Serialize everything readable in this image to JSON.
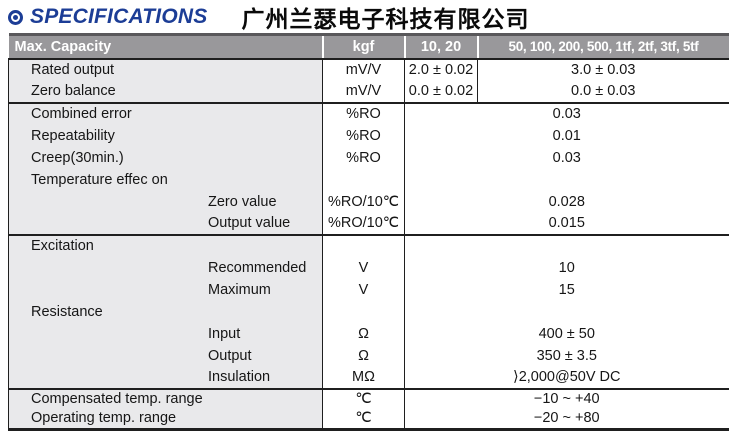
{
  "title_bar": {
    "bullet_icon": "fisheye-bullet",
    "title": "SPECIFICATIONS",
    "company": "广州兰瑟电子科技有限公司"
  },
  "colors": {
    "title_blue": "#1c3d96",
    "table_header_bg": "#99989b",
    "label_column_bg": "#e9e9eb",
    "rule_line": "#1f1f1f"
  },
  "table": {
    "header": {
      "capacity_label": "Max. Capacity",
      "unit": "kgf",
      "range_low": "10, 20",
      "range_high": "50, 100, 200, 500, 1tf, 2tf, 3tf, 5tf"
    },
    "rows": [
      {
        "label": "Rated output",
        "sub": false,
        "unit": "mV/V",
        "value_low": "2.0 ± 0.02",
        "value_high": "3.0 ± 0.03",
        "split": true
      },
      {
        "label": "Zero balance",
        "sub": false,
        "unit": "mV/V",
        "value_low": "0.0 ± 0.02",
        "value_high": "0.0 ± 0.03",
        "split": true
      },
      {
        "label": "Combined error",
        "sub": false,
        "unit": "%RO",
        "value": "0.03",
        "section_start": true
      },
      {
        "label": "Repeatability",
        "sub": false,
        "unit": "%RO",
        "value": "0.01"
      },
      {
        "label": "Creep(30min.)",
        "sub": false,
        "unit": "%RO",
        "value": "0.03"
      },
      {
        "label": "Temperature effec on",
        "sub": false,
        "unit": "",
        "value": ""
      },
      {
        "label": "Zero value",
        "sub": true,
        "unit": "%RO/10℃",
        "value": "0.028"
      },
      {
        "label": "Output value",
        "sub": true,
        "unit": "%RO/10℃",
        "value": "0.015"
      },
      {
        "label": "Excitation",
        "sub": false,
        "unit": "",
        "value": "",
        "section_start": true
      },
      {
        "label": "Recommended",
        "sub": true,
        "unit": "V",
        "value": "10"
      },
      {
        "label": "Maximum",
        "sub": true,
        "unit": "V",
        "value": "15"
      },
      {
        "label": "Resistance",
        "sub": false,
        "unit": "",
        "value": ""
      },
      {
        "label": "Input",
        "sub": true,
        "unit": "Ω",
        "value": "400 ± 50"
      },
      {
        "label": "Output",
        "sub": true,
        "unit": "Ω",
        "value": "350 ± 3.5"
      },
      {
        "label": "Insulation",
        "sub": true,
        "unit": "MΩ",
        "value": "⟩2,000@50V DC"
      },
      {
        "label": "Compensated temp. range",
        "sub": false,
        "unit": "℃",
        "value": "−10 ~ +40",
        "section_start": true,
        "short": true
      },
      {
        "label": "Operating temp. range",
        "sub": false,
        "unit": "℃",
        "value": "−20 ~ +80",
        "short": true
      }
    ]
  }
}
